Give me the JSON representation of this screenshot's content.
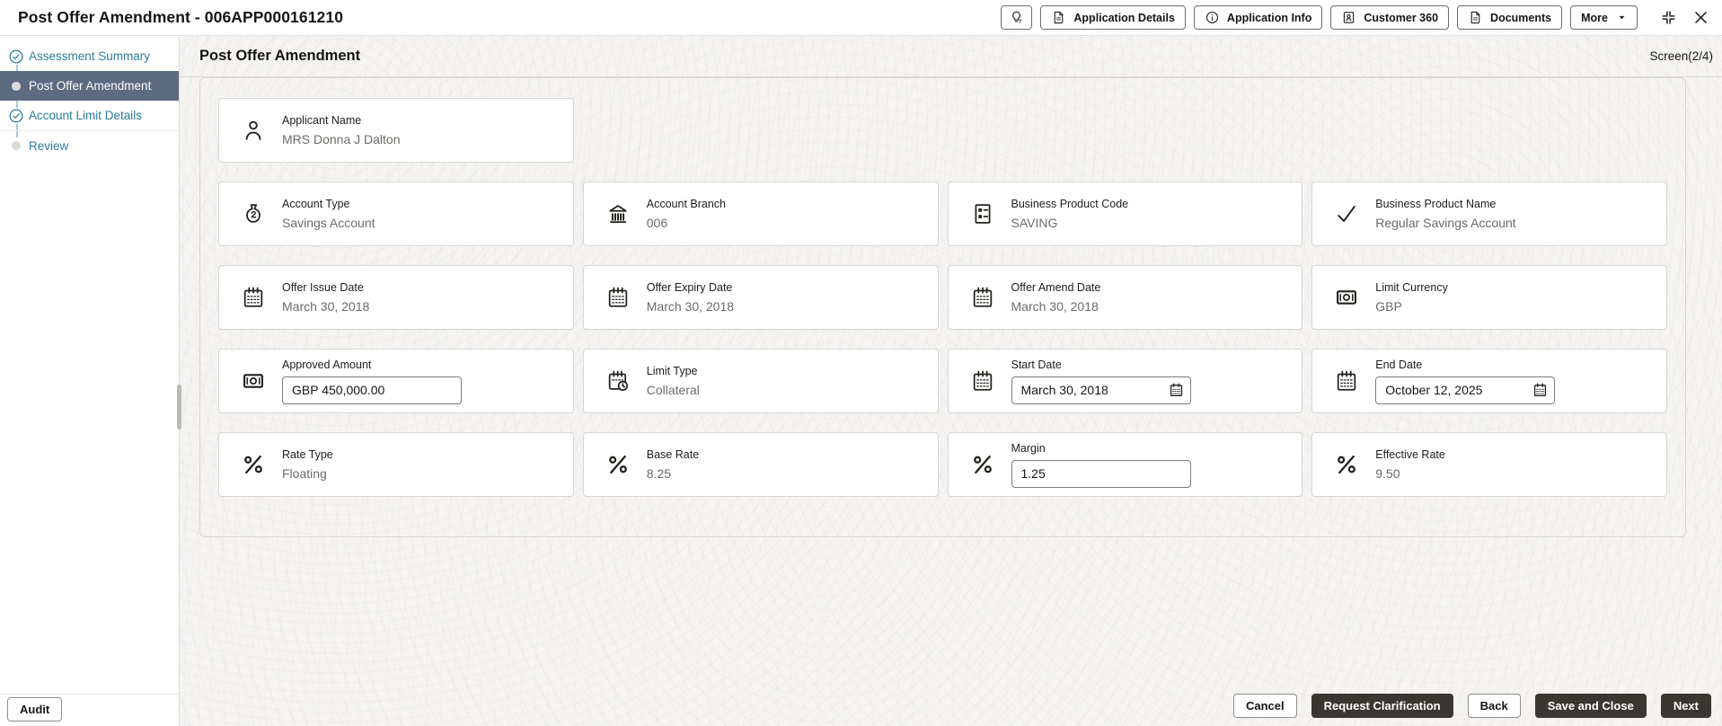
{
  "topbar": {
    "title": "Post Offer Amendment - 006APP000161210",
    "buttons": [
      {
        "name": "hint",
        "icon": "bulb-question-icon",
        "label": ""
      },
      {
        "name": "application-details",
        "icon": "document-icon",
        "label": "Application Details"
      },
      {
        "name": "application-info",
        "icon": "info-icon",
        "label": "Application Info"
      },
      {
        "name": "customer-360",
        "icon": "customer-badge-icon",
        "label": "Customer 360"
      },
      {
        "name": "documents",
        "icon": "document-icon",
        "label": "Documents"
      },
      {
        "name": "more",
        "icon": "caret-down-icon",
        "label": "More"
      }
    ],
    "window_controls": [
      {
        "name": "collapse",
        "icon": "collapse-icon"
      },
      {
        "name": "close",
        "icon": "close-icon"
      }
    ]
  },
  "sidebar": {
    "items": [
      {
        "label": "Assessment Summary",
        "state": "done",
        "icon": "check-circle-icon"
      },
      {
        "label": "Post Offer Amendment",
        "state": "active",
        "icon": "active-dot-icon"
      },
      {
        "label": "Account Limit Details",
        "state": "done",
        "icon": "check-circle-icon"
      },
      {
        "label": "Review",
        "state": "todo",
        "icon": "todo-dot-icon"
      }
    ]
  },
  "main": {
    "title": "Post Offer Amendment",
    "screen_counter": "Screen(2/4)"
  },
  "form": {
    "rows": [
      [
        {
          "label": "Applicant Name",
          "value": "MRS Donna J Dalton",
          "icon": "person-icon",
          "type": "text"
        }
      ],
      [
        {
          "label": "Account Type",
          "value": "Savings Account",
          "icon": "money-bag-icon",
          "type": "text"
        },
        {
          "label": "Account Branch",
          "value": "006",
          "icon": "bank-icon",
          "type": "text"
        },
        {
          "label": "Business Product Code",
          "value": "SAVING",
          "icon": "product-form-icon",
          "type": "text"
        },
        {
          "label": "Business Product Name",
          "value": "Regular Savings Account",
          "icon": "check-icon",
          "type": "text"
        }
      ],
      [
        {
          "label": "Offer Issue Date",
          "value": "March 30, 2018",
          "icon": "calendar-icon",
          "type": "text"
        },
        {
          "label": "Offer Expiry Date",
          "value": "March 30, 2018",
          "icon": "calendar-icon",
          "type": "text"
        },
        {
          "label": "Offer Amend Date",
          "value": "March 30, 2018",
          "icon": "calendar-icon",
          "type": "text"
        },
        {
          "label": "Limit Currency",
          "value": "GBP",
          "icon": "banknote-icon",
          "type": "text"
        }
      ],
      [
        {
          "label": "Approved Amount",
          "value": "GBP 450,000.00",
          "icon": "banknote-icon",
          "type": "input"
        },
        {
          "label": "Limit Type",
          "value": "Collateral",
          "icon": "calendar-clock-icon",
          "type": "text"
        },
        {
          "label": "Start Date",
          "value": "March 30, 2018",
          "icon": "calendar-icon",
          "type": "date-input"
        },
        {
          "label": "End Date",
          "value": "October 12, 2025",
          "icon": "calendar-icon",
          "type": "date-input"
        }
      ],
      [
        {
          "label": "Rate Type",
          "value": "Floating",
          "icon": "percent-icon",
          "type": "text"
        },
        {
          "label": "Base Rate",
          "value": "8.25",
          "icon": "percent-icon",
          "type": "text"
        },
        {
          "label": "Margin",
          "value": "1.25",
          "icon": "percent-icon",
          "type": "input"
        },
        {
          "label": "Effective Rate",
          "value": "9.50",
          "icon": "percent-icon",
          "type": "text"
        }
      ]
    ]
  },
  "footer": {
    "audit_label": "Audit",
    "buttons": [
      {
        "label": "Cancel",
        "style": "light"
      },
      {
        "label": "Request Clarification",
        "style": "dark"
      },
      {
        "label": "Back",
        "style": "light"
      },
      {
        "label": "Save and Close",
        "style": "dark"
      },
      {
        "label": "Next",
        "style": "dark"
      }
    ]
  },
  "colors": {
    "sidebar_link": "#2c7b9c",
    "active_step_bg": "#5d6b81",
    "dark_button_bg": "#3a3632",
    "main_bg": "#f5f4f2",
    "card_border": "#d7d5d1",
    "value_text": "#6d6b67"
  }
}
